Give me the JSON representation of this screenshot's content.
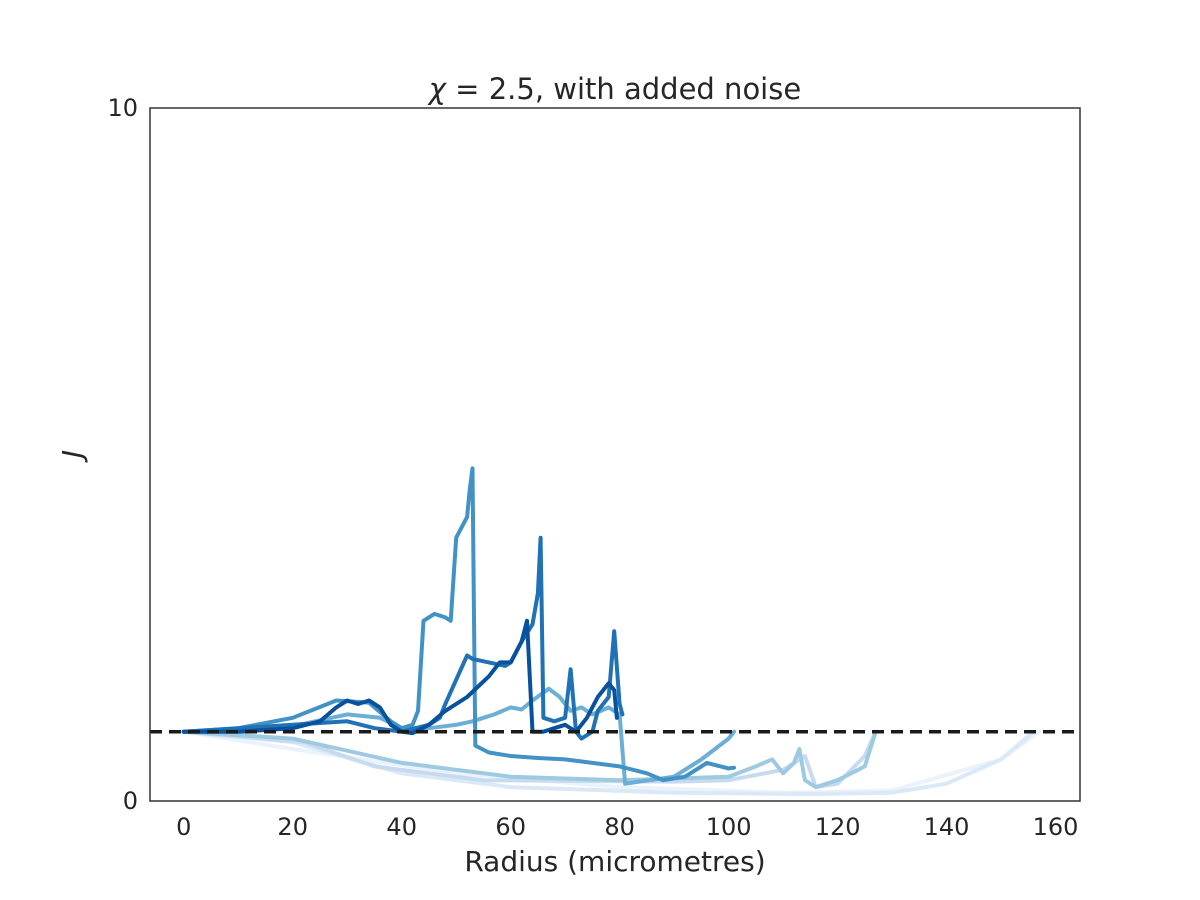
{
  "chart_data": {
    "type": "line",
    "title_italic": "χ",
    "title_rest": " = 2.5, with added noise",
    "xlabel": "Radius (micrometres)",
    "ylabel": "J",
    "xlim": [
      -6.2,
      164.5
    ],
    "ylim": [
      0,
      10
    ],
    "xticks": [
      0,
      20,
      40,
      60,
      80,
      100,
      120,
      140,
      160
    ],
    "yticks": [
      0,
      10
    ],
    "grid": false,
    "legend": "none",
    "reference_line": {
      "y": 1.0,
      "style": "dashed",
      "color": "#1a1a1a"
    },
    "series": [
      {
        "color": "#eaf2fb",
        "points": [
          [
            0,
            1.0
          ],
          [
            20,
            0.75
          ],
          [
            50,
            0.4
          ],
          [
            80,
            0.2
          ],
          [
            110,
            0.12
          ],
          [
            130,
            0.15
          ],
          [
            150,
            0.6
          ],
          [
            157,
            1.0
          ]
        ]
      },
      {
        "color": "#dbe9f6",
        "points": [
          [
            0,
            1.0
          ],
          [
            20,
            0.85
          ],
          [
            40,
            0.4
          ],
          [
            60,
            0.2
          ],
          [
            90,
            0.12
          ],
          [
            115,
            0.1
          ],
          [
            130,
            0.12
          ],
          [
            140,
            0.25
          ],
          [
            150,
            0.6
          ],
          [
            156,
            1.0
          ]
        ]
      },
      {
        "color": "#c6dbef",
        "points": [
          [
            0,
            1.0
          ],
          [
            22,
            0.85
          ],
          [
            35,
            0.5
          ],
          [
            55,
            0.3
          ],
          [
            90,
            0.28
          ],
          [
            100,
            0.3
          ],
          [
            110,
            0.45
          ],
          [
            114,
            0.65
          ],
          [
            116,
            0.2
          ],
          [
            120,
            0.25
          ],
          [
            125,
            0.65
          ],
          [
            127,
            1.0
          ]
        ]
      },
      {
        "color": "#9ecae1",
        "points": [
          [
            0,
            1.0
          ],
          [
            20,
            0.9
          ],
          [
            40,
            0.55
          ],
          [
            60,
            0.35
          ],
          [
            80,
            0.3
          ],
          [
            100,
            0.35
          ],
          [
            105,
            0.5
          ],
          [
            108,
            0.6
          ],
          [
            110,
            0.4
          ],
          [
            112,
            0.55
          ],
          [
            113,
            0.75
          ],
          [
            114,
            0.3
          ],
          [
            116,
            0.2
          ],
          [
            120,
            0.3
          ],
          [
            125,
            0.5
          ],
          [
            127,
            1.0
          ]
        ]
      },
      {
        "color": "#6baed6",
        "points": [
          [
            0,
            1.0
          ],
          [
            10,
            1.02
          ],
          [
            20,
            1.08
          ],
          [
            30,
            1.25
          ],
          [
            36,
            1.2
          ],
          [
            40,
            1.05
          ],
          [
            45,
            1.05
          ],
          [
            50,
            1.1
          ],
          [
            53,
            1.15
          ],
          [
            55,
            1.2
          ],
          [
            57,
            1.25
          ],
          [
            60,
            1.35
          ],
          [
            62,
            1.32
          ],
          [
            64,
            1.45
          ],
          [
            67,
            1.62
          ],
          [
            69,
            1.5
          ],
          [
            71,
            1.3
          ],
          [
            73,
            1.35
          ],
          [
            75,
            1.25
          ],
          [
            78,
            1.35
          ],
          [
            80,
            1.25
          ],
          [
            81,
            0.25
          ],
          [
            90,
            0.35
          ],
          [
            95,
            0.6
          ],
          [
            100,
            0.9
          ],
          [
            101,
            1.0
          ]
        ]
      },
      {
        "color": "#4292c6",
        "points": [
          [
            0,
            1.0
          ],
          [
            10,
            1.05
          ],
          [
            20,
            1.2
          ],
          [
            28,
            1.45
          ],
          [
            34,
            1.42
          ],
          [
            38,
            1.15
          ],
          [
            40,
            1.05
          ],
          [
            42,
            1.1
          ],
          [
            43,
            1.3
          ],
          [
            44,
            2.6
          ],
          [
            46,
            2.7
          ],
          [
            48,
            2.65
          ],
          [
            49,
            2.6
          ],
          [
            50,
            3.8
          ],
          [
            52,
            4.1
          ],
          [
            52.5,
            4.5
          ],
          [
            53,
            4.8
          ],
          [
            53.5,
            0.8
          ],
          [
            56,
            0.7
          ],
          [
            60,
            0.65
          ],
          [
            65,
            0.62
          ],
          [
            70,
            0.6
          ],
          [
            75,
            0.55
          ],
          [
            80,
            0.5
          ],
          [
            85,
            0.4
          ],
          [
            88,
            0.3
          ],
          [
            92,
            0.35
          ],
          [
            95,
            0.5
          ],
          [
            96,
            0.55
          ],
          [
            100,
            0.47
          ],
          [
            101,
            0.48
          ]
        ]
      },
      {
        "color": "#2171b5",
        "points": [
          [
            0,
            1.0
          ],
          [
            10,
            1.05
          ],
          [
            20,
            1.1
          ],
          [
            30,
            1.15
          ],
          [
            35,
            1.05
          ],
          [
            40,
            1.0
          ],
          [
            45,
            1.1
          ],
          [
            47,
            1.2
          ],
          [
            48,
            1.4
          ],
          [
            50,
            1.75
          ],
          [
            52,
            2.1
          ],
          [
            53,
            2.05
          ],
          [
            56,
            2.0
          ],
          [
            59,
            1.95
          ],
          [
            60,
            2.0
          ],
          [
            62,
            2.3
          ],
          [
            64,
            2.55
          ],
          [
            65,
            3.0
          ],
          [
            65.5,
            3.8
          ],
          [
            66,
            1.2
          ],
          [
            68,
            1.15
          ],
          [
            70,
            1.2
          ],
          [
            71,
            1.9
          ],
          [
            72,
            1.0
          ],
          [
            73,
            0.9
          ],
          [
            75,
            1.0
          ],
          [
            76,
            1.3
          ],
          [
            78,
            1.5
          ],
          [
            79,
            2.45
          ],
          [
            80,
            1.4
          ],
          [
            80.5,
            1.25
          ]
        ]
      },
      {
        "color": "#08519c",
        "points": [
          [
            0,
            1.0
          ],
          [
            10,
            1.0
          ],
          [
            20,
            1.05
          ],
          [
            25,
            1.15
          ],
          [
            28,
            1.35
          ],
          [
            30,
            1.45
          ],
          [
            32,
            1.4
          ],
          [
            34,
            1.45
          ],
          [
            36,
            1.35
          ],
          [
            38,
            1.1
          ],
          [
            40,
            1.0
          ],
          [
            42,
            0.98
          ],
          [
            45,
            1.1
          ],
          [
            48,
            1.3
          ],
          [
            52,
            1.5
          ],
          [
            56,
            1.8
          ],
          [
            58,
            2.0
          ],
          [
            60,
            2.0
          ],
          [
            62,
            2.3
          ],
          [
            63,
            2.6
          ],
          [
            64,
            1.0
          ],
          [
            66,
            1.0
          ],
          [
            68,
            1.05
          ],
          [
            70,
            1.1
          ],
          [
            72,
            1.0
          ],
          [
            74,
            1.2
          ],
          [
            76,
            1.5
          ],
          [
            78,
            1.7
          ],
          [
            79,
            1.6
          ],
          [
            79.5,
            1.2
          ]
        ]
      }
    ]
  }
}
